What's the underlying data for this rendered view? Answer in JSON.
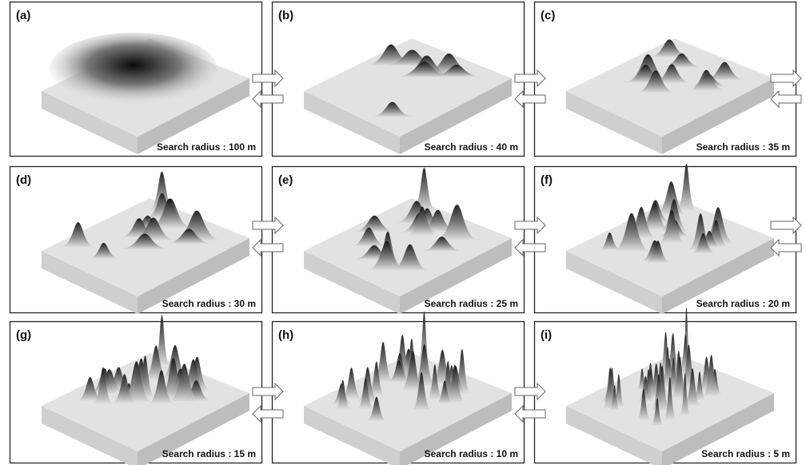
{
  "panels": [
    {
      "label": "(a)",
      "caption": "Search radius : 100 m"
    },
    {
      "label": "(b)",
      "caption": "Search radius : 40 m"
    },
    {
      "label": "(c)",
      "caption": "Search radius : 35 m"
    },
    {
      "label": "(d)",
      "caption": "Search radius : 30 m"
    },
    {
      "label": "(e)",
      "caption": "Search radius : 25 m"
    },
    {
      "label": "(f)",
      "caption": "Search radius : 20 m"
    },
    {
      "label": "(g)",
      "caption": "Search radius : 15 m"
    },
    {
      "label": "(h)",
      "caption": "Search radius : 10 m"
    },
    {
      "label": "(i)",
      "caption": "Search radius : 5 m"
    }
  ]
}
